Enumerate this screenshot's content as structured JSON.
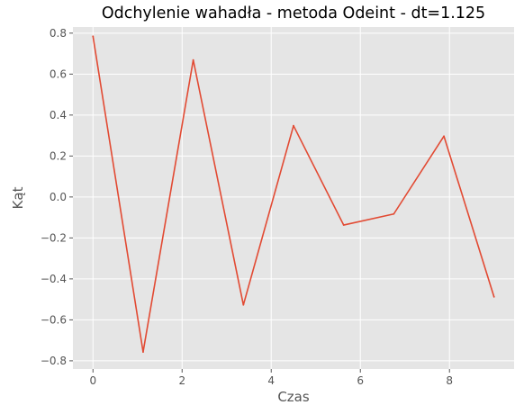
{
  "chart_data": {
    "type": "line",
    "title": "Odchylenie wahadła - metoda Odeint - dt=1.125",
    "xlabel": "Czas",
    "ylabel": "Kąt",
    "xlim": [
      -0.45,
      9.45
    ],
    "ylim": [
      -0.84,
      0.83
    ],
    "x_ticks": [
      0,
      2,
      4,
      6,
      8
    ],
    "x_tick_labels": [
      "0",
      "2",
      "4",
      "6",
      "8"
    ],
    "y_ticks": [
      -0.8,
      -0.6,
      -0.4,
      -0.2,
      0.0,
      0.2,
      0.4,
      0.6,
      0.8
    ],
    "y_tick_labels": [
      "−0.8",
      "−0.6",
      "−0.4",
      "−0.2",
      "0.0",
      "0.2",
      "0.4",
      "0.6",
      "0.8"
    ],
    "grid": true,
    "series": [
      {
        "x": [
          0,
          1.125,
          2.25,
          3.375,
          4.5,
          5.625,
          6.75,
          7.875,
          9.0
        ],
        "y": [
          0.785,
          -0.757,
          0.669,
          -0.527,
          0.348,
          -0.137,
          -0.083,
          0.297,
          -0.488
        ],
        "color": "#E24A33"
      }
    ],
    "colors": {
      "plot_background": "#E5E5E5",
      "grid": "#FFFFFF",
      "line": "#E24A33",
      "tick": "#555555"
    }
  }
}
